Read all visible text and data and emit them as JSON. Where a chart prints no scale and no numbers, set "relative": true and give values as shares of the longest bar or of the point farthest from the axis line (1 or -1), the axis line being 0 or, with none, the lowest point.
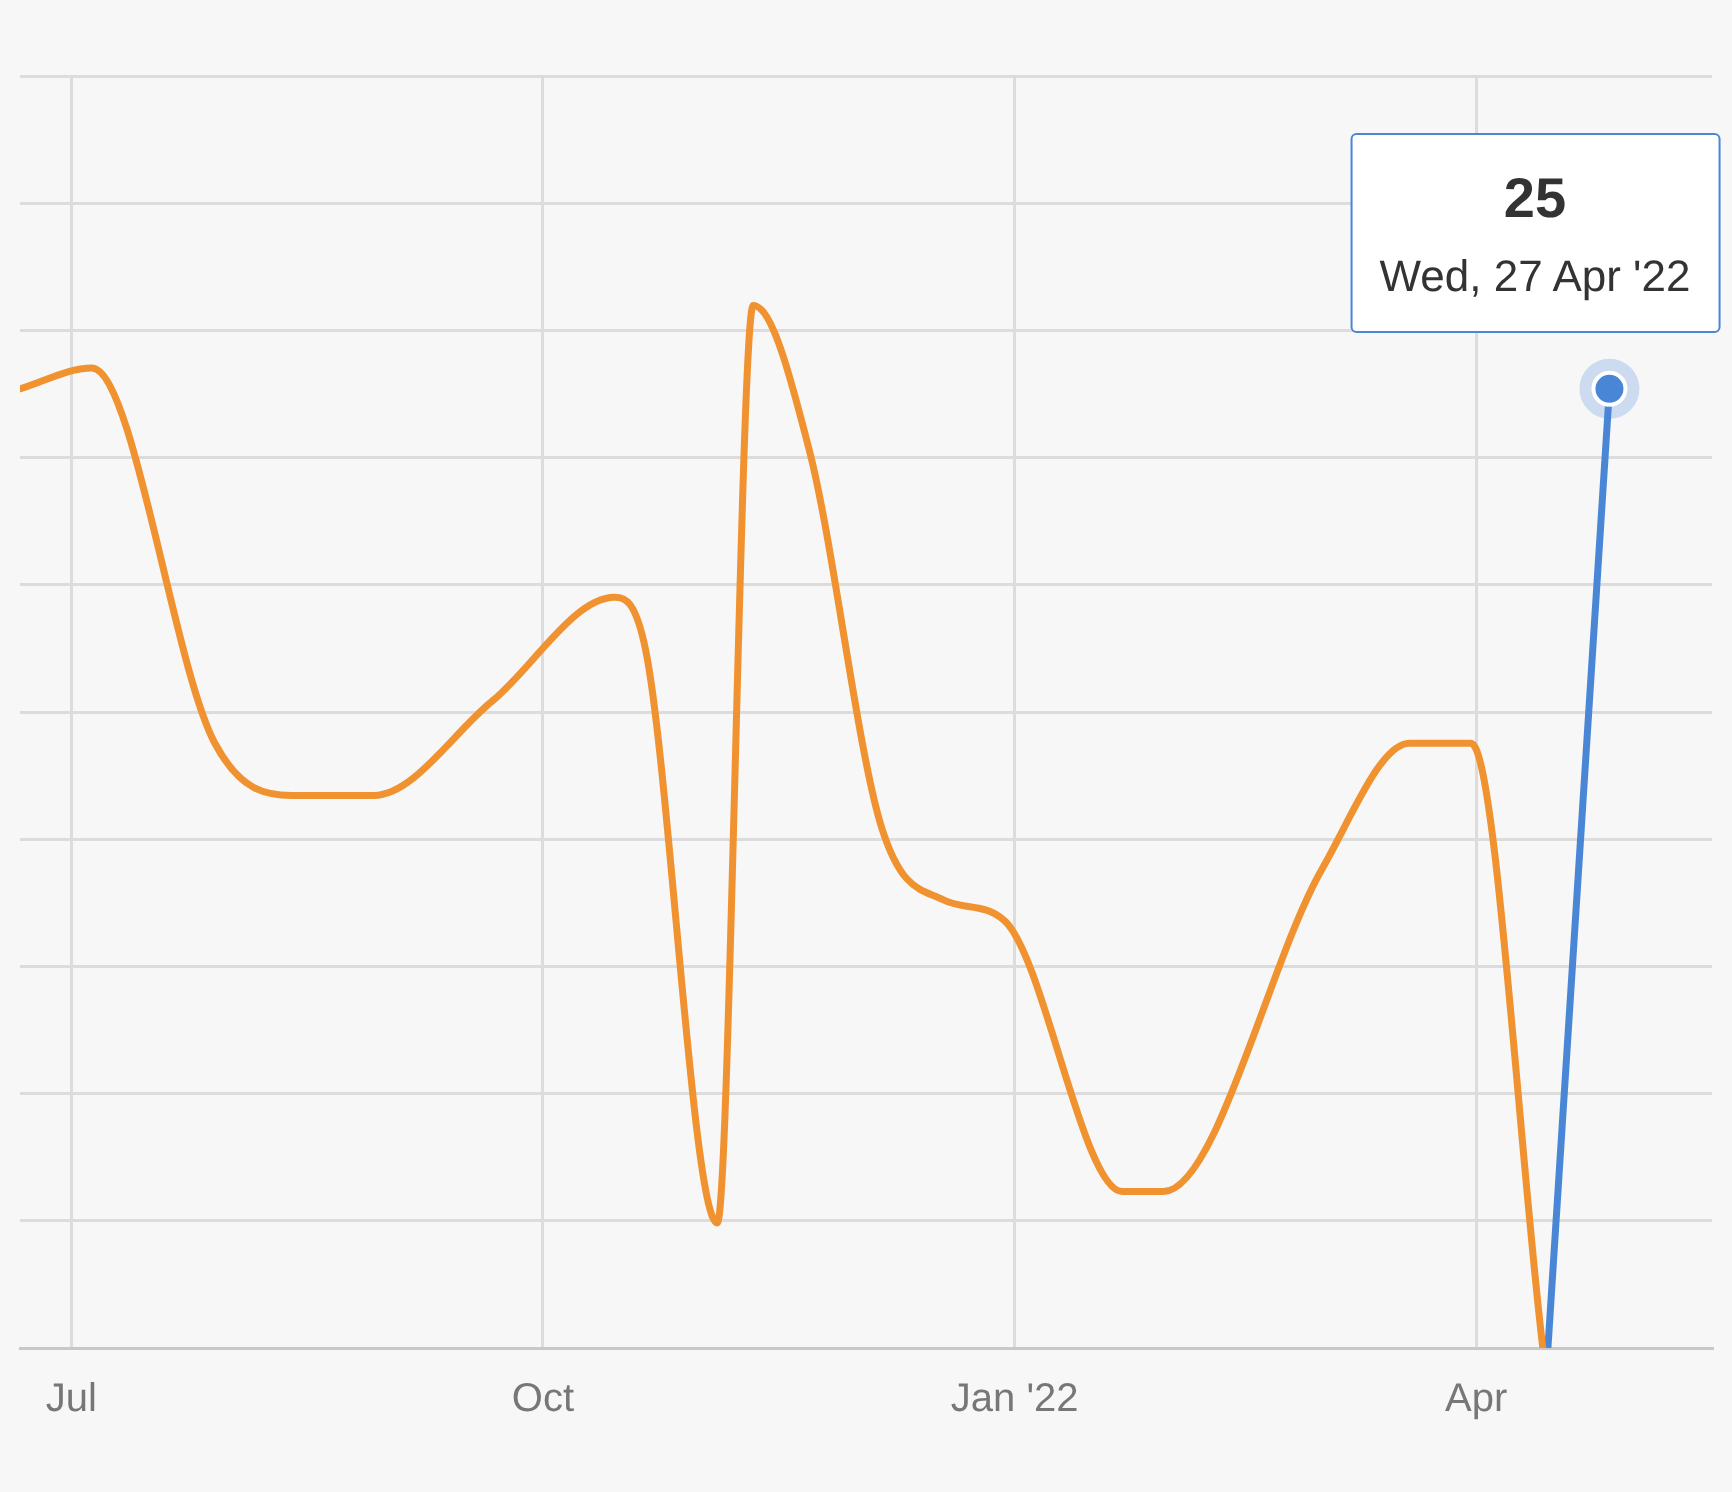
{
  "chart_data": {
    "type": "line",
    "relative": true,
    "grid": true,
    "legend": false,
    "line_style": "solid",
    "xlim": [
      "2021-06-21",
      "2022-05-17"
    ],
    "xticks": [
      {
        "value": "2021-07-01",
        "label": "Jul"
      },
      {
        "value": "2021-10-01",
        "label": "Oct"
      },
      {
        "value": "2022-01-01",
        "label": "Jan '22"
      },
      {
        "value": "2022-04-01",
        "label": "Apr"
      }
    ],
    "series": [
      {
        "color": "#f0922f",
        "marker": "none",
        "x": [
          "2021-06-21",
          "2021-07-05",
          "2021-07-29",
          "2021-08-13",
          "2021-08-29",
          "2021-09-21",
          "2021-10-15",
          "2021-10-21",
          "2021-11-04",
          "2021-11-11",
          "2021-11-22",
          "2021-12-06",
          "2021-12-18",
          "2021-12-30",
          "2022-01-22",
          "2022-01-30",
          "2022-03-02",
          "2022-03-19",
          "2022-03-31",
          "2022-04-14"
        ],
        "values": [
          0.92,
          0.94,
          0.58,
          0.53,
          0.53,
          0.62,
          0.72,
          0.67,
          0.12,
          1.0,
          0.86,
          0.5,
          0.43,
          0.41,
          0.15,
          0.15,
          0.46,
          0.58,
          0.58,
          0
        ]
      },
      {
        "color": "#4a86d6",
        "marker": "circle",
        "x": [
          "2022-04-15",
          "2022-04-27"
        ],
        "values": [
          0,
          0.92
        ]
      }
    ],
    "annotations": [
      {
        "text": "25",
        "x": "2022-04-27",
        "y": 0.92
      },
      "Wed, 27 Apr '22"
    ]
  }
}
